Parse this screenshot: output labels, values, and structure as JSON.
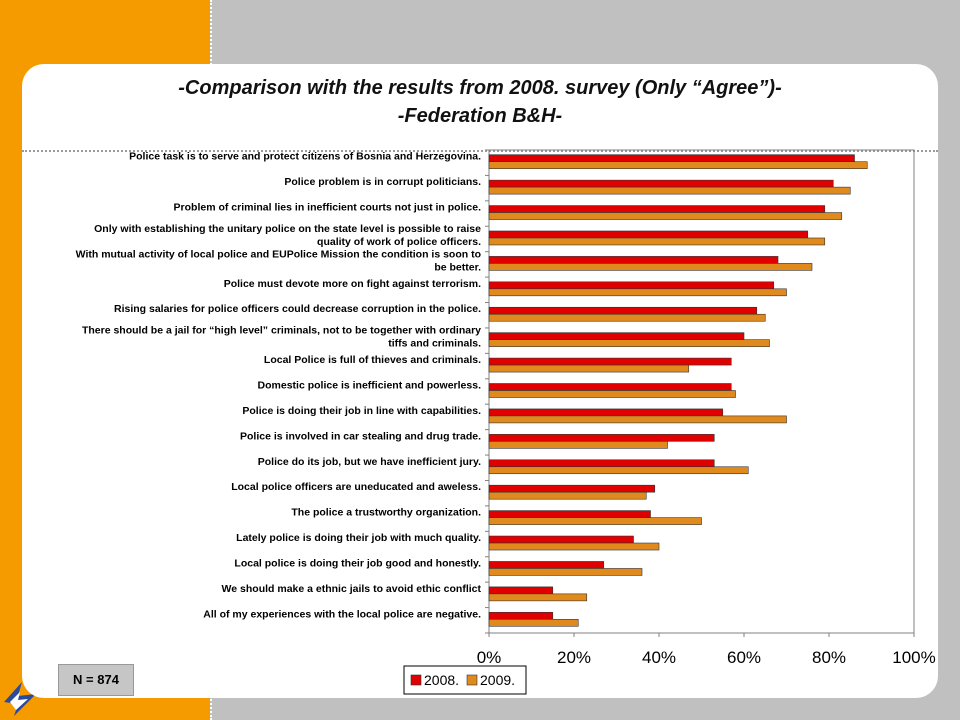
{
  "slide": {
    "title_line1": "-Comparison with the results from 2008. survey (Only “Agree”)-",
    "title_line2": "-Federation B&H-",
    "n_label": "N = 874"
  },
  "colors": {
    "s2008": "#e00000",
    "s2009": "#e08a1e",
    "orange": "#f59b00"
  },
  "chart_data": {
    "type": "bar",
    "orientation": "horizontal",
    "title": "",
    "xlabel": "",
    "ylabel": "",
    "xlim": [
      0,
      1
    ],
    "ticks": [
      "0%",
      "20%",
      "40%",
      "60%",
      "80%",
      "100%"
    ],
    "grid": false,
    "legend_position": "bottom",
    "categories": [
      [
        "Police task is to serve and protect citizens of Bosnia and Herzegovina."
      ],
      [
        "Police problem is in corrupt politicians."
      ],
      [
        "Problem of criminal lies in inefficient courts not just in police."
      ],
      [
        "Only with establishing the unitary police on the state level is possible to raise",
        "quality of work of police officers."
      ],
      [
        "With mutual activity of local police and EUPolice Mission the condition is soon to",
        "be better."
      ],
      [
        "Police must devote more on fight against terrorism."
      ],
      [
        "Rising salaries for police officers could decrease corruption in the police."
      ],
      [
        "There should be a jail for “high level” criminals, not to be together with ordinary",
        "tiffs and criminals."
      ],
      [
        "Local Police is full of thieves and criminals."
      ],
      [
        "Domestic police is inefficient and powerless."
      ],
      [
        "Police is doing their job in line with capabilities."
      ],
      [
        "Police is involved in car stealing and drug trade."
      ],
      [
        "Police do its job, but we have inefficient jury."
      ],
      [
        "Local police officers are uneducated and aweless."
      ],
      [
        "The police a trustworthy organization."
      ],
      [
        "Lately police is doing their job with much quality."
      ],
      [
        "Local police is doing their job good and honestly."
      ],
      [
        "We should make a ethnic jails to avoid ethic conflict"
      ],
      [
        "All of my experiences with the local police are negative."
      ]
    ],
    "series": [
      {
        "name": "2008.",
        "values": [
          0.86,
          0.81,
          0.79,
          0.75,
          0.68,
          0.67,
          0.63,
          0.6,
          0.57,
          0.57,
          0.55,
          0.53,
          0.53,
          0.39,
          0.38,
          0.34,
          0.27,
          0.15,
          0.15
        ]
      },
      {
        "name": "2009.",
        "values": [
          0.89,
          0.85,
          0.83,
          0.79,
          0.76,
          0.7,
          0.65,
          0.66,
          0.47,
          0.58,
          0.7,
          0.42,
          0.61,
          0.37,
          0.5,
          0.4,
          0.36,
          0.23,
          0.21
        ]
      }
    ]
  }
}
